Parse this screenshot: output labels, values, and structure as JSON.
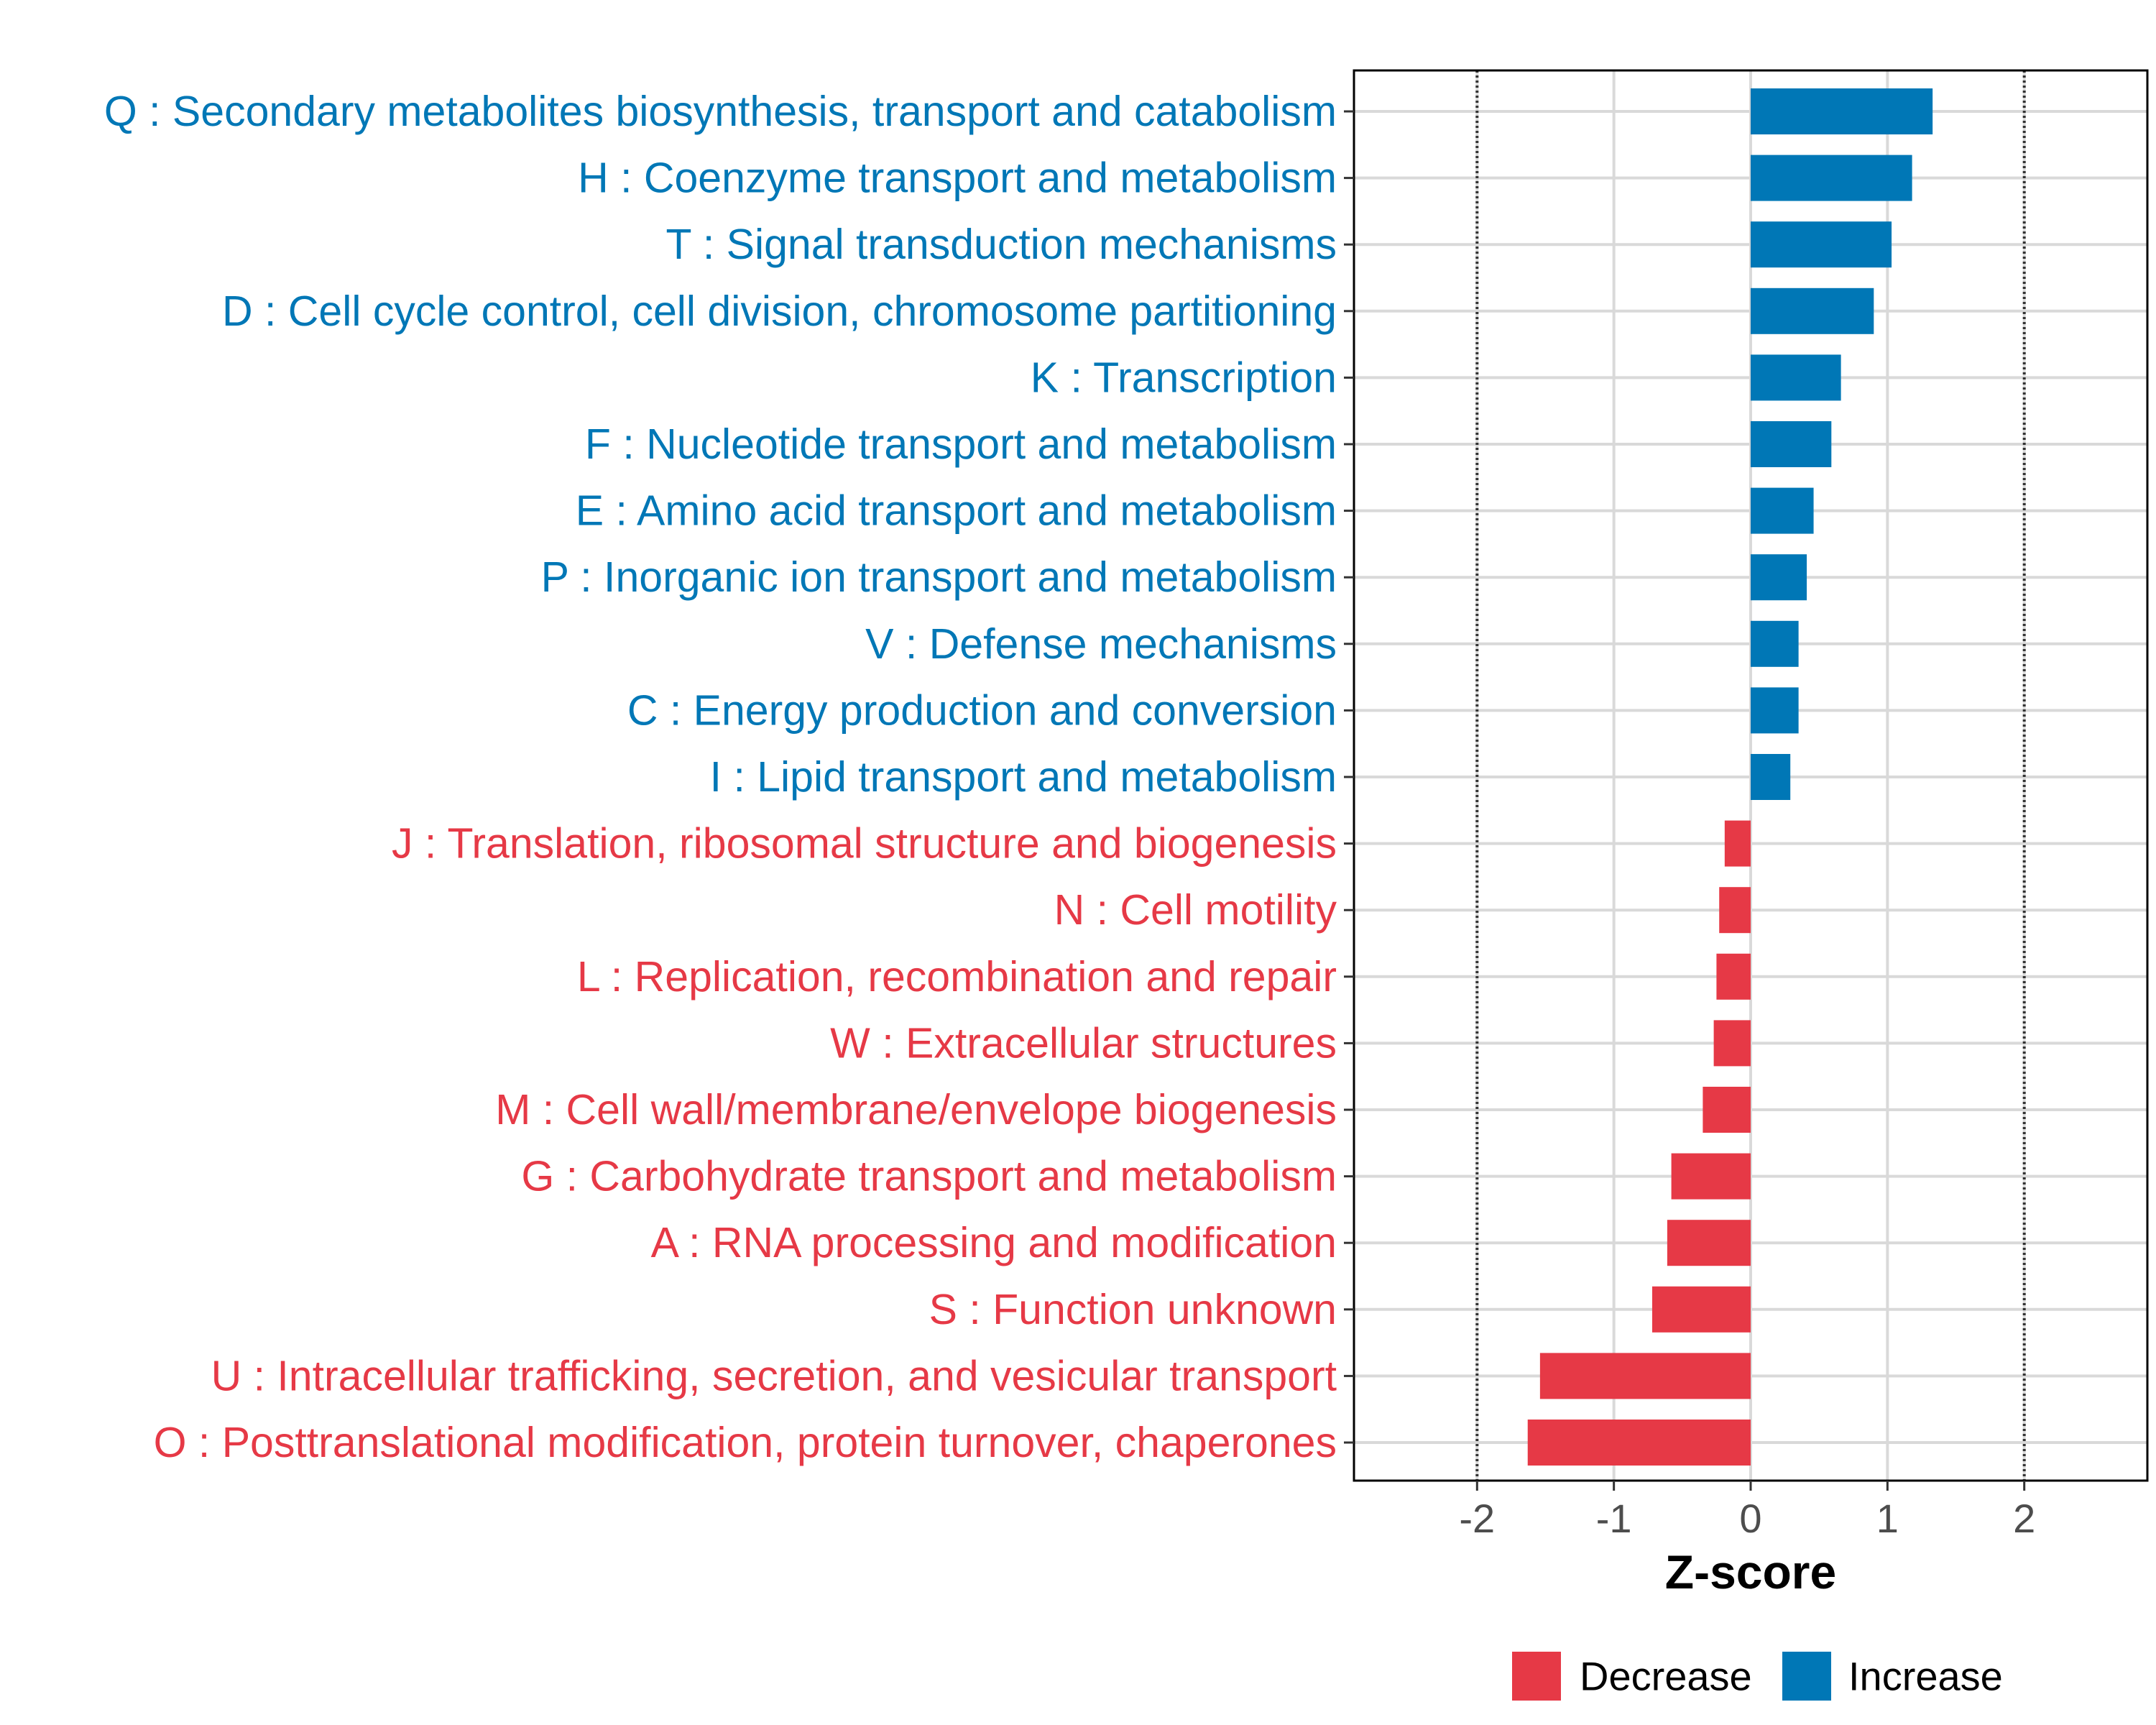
{
  "chart_data": {
    "type": "bar",
    "orientation": "horizontal",
    "xlabel": "Z-score",
    "ylabel": "",
    "xlim": [
      -2.9,
      2.9
    ],
    "xticks": [
      -2,
      -1,
      0,
      1,
      2
    ],
    "xtick_labels": [
      "-2",
      "-1",
      "0",
      "1",
      "2"
    ],
    "reference_lines": [
      -2,
      2
    ],
    "grid": true,
    "categories": [
      "Q : Secondary metabolites biosynthesis, transport and catabolism",
      "H : Coenzyme transport and metabolism",
      "T : Signal transduction mechanisms",
      "D : Cell cycle control, cell division, chromosome partitioning",
      "K : Transcription",
      "F : Nucleotide transport and metabolism",
      "E : Amino acid transport and metabolism",
      "P : Inorganic ion transport and metabolism",
      "V : Defense mechanisms",
      "C : Energy production and conversion",
      "I : Lipid transport and metabolism",
      "J : Translation, ribosomal structure and biogenesis",
      "N : Cell motility",
      "L : Replication, recombination and repair",
      "W : Extracellular structures",
      "M : Cell wall/membrane/envelope biogenesis",
      "G : Carbohydrate transport and metabolism",
      "A : RNA processing and modification",
      "S : Function unknown",
      "U : Intracellular trafficking, secretion, and vesicular transport",
      "O : Posttranslational modification, protein turnover, chaperones"
    ],
    "values": [
      1.33,
      1.18,
      1.03,
      0.9,
      0.66,
      0.59,
      0.46,
      0.41,
      0.35,
      0.35,
      0.29,
      -0.19,
      -0.23,
      -0.25,
      -0.27,
      -0.35,
      -0.58,
      -0.61,
      -0.72,
      -1.54,
      -1.63
    ],
    "groups": [
      "Increase",
      "Increase",
      "Increase",
      "Increase",
      "Increase",
      "Increase",
      "Increase",
      "Increase",
      "Increase",
      "Increase",
      "Increase",
      "Decrease",
      "Decrease",
      "Decrease",
      "Decrease",
      "Decrease",
      "Decrease",
      "Decrease",
      "Decrease",
      "Decrease",
      "Decrease"
    ],
    "legend": {
      "placement": "bottom",
      "entries": [
        {
          "label": "Decrease",
          "color": "#e63946"
        },
        {
          "label": "Increase",
          "color": "#0077b6"
        }
      ]
    }
  }
}
